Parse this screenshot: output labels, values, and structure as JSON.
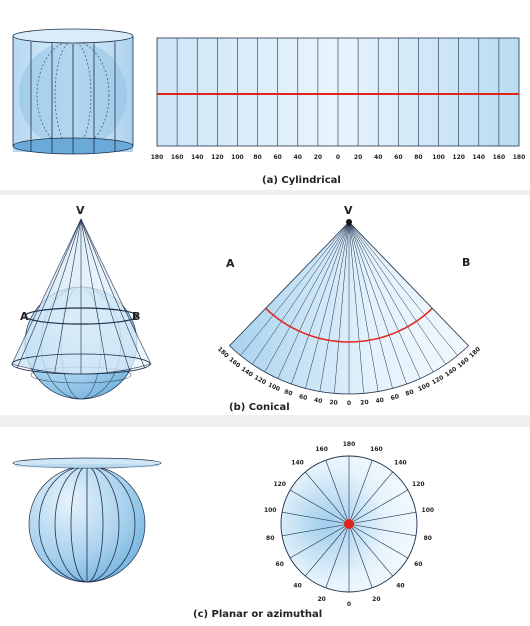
{
  "panels": {
    "cylindrical": {
      "caption": "(a) Cylindrical",
      "ticks": [
        "180",
        "160",
        "140",
        "120",
        "100",
        "80",
        "60",
        "40",
        "20",
        "0",
        "20",
        "40",
        "60",
        "80",
        "100",
        "120",
        "140",
        "160",
        "180"
      ]
    },
    "conical": {
      "caption": "(b) Conical",
      "apex_label": "V",
      "left_label": "A",
      "right_label": "B",
      "ticks": [
        "180",
        "160",
        "140",
        "120",
        "100",
        "80",
        "60",
        "40",
        "20",
        "0",
        "20",
        "40",
        "60",
        "80",
        "100",
        "120",
        "140",
        "160",
        "180"
      ]
    },
    "planar": {
      "caption": "(c) Planar or azimuthal",
      "ticks": [
        "0",
        "20",
        "40",
        "60",
        "80",
        "100",
        "120",
        "140",
        "160",
        "180",
        "160",
        "140",
        "120",
        "100",
        "80",
        "60",
        "40",
        "20"
      ]
    }
  },
  "colors": {
    "fill_light": "#e6f3fb",
    "fill_mid": "#bfe0f3",
    "fill_dark": "#7db9e0",
    "line": "#1f2f4a",
    "accent": "#e2231a",
    "divider": "#f0f0f0"
  }
}
